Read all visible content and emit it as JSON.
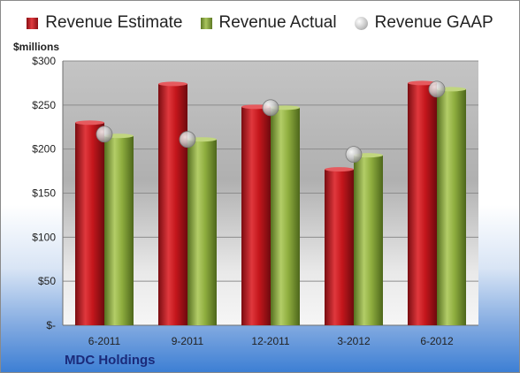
{
  "company": "MDC Holdings",
  "units_label": "$millions",
  "colors": {
    "estimate": "#c0151b",
    "actual": "#8fae3f",
    "gaap": "#b8b8b8"
  },
  "chart_data": {
    "type": "bar",
    "categories": [
      "6-2011",
      "9-2011",
      "12-2011",
      "3-2012",
      "6-2012"
    ],
    "series": [
      {
        "name": "Revenue Estimate",
        "type": "bar",
        "values": [
          230,
          274,
          248,
          177,
          275
        ]
      },
      {
        "name": "Revenue Actual",
        "type": "bar",
        "values": [
          215,
          211,
          247,
          193,
          268
        ]
      },
      {
        "name": "Revenue GAAP",
        "type": "marker",
        "values": [
          217,
          211,
          247,
          194,
          268
        ]
      }
    ],
    "title": "",
    "xlabel": "",
    "ylabel": "$millions",
    "ylim": [
      0,
      300
    ],
    "yticks": [
      0,
      50,
      100,
      150,
      200,
      250,
      300
    ],
    "ytick_labels": [
      "$-",
      "$50",
      "$100",
      "$150",
      "$200",
      "$250",
      "$300"
    ],
    "legend_position": "top",
    "grid": true
  }
}
